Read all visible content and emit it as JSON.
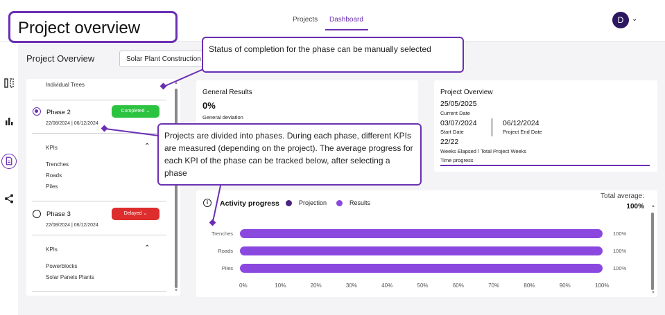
{
  "header": {
    "title": "Project overview",
    "tabs": [
      {
        "label": "Projects",
        "active": false
      },
      {
        "label": "Dashboard",
        "active": true
      }
    ],
    "avatar_initial": "D",
    "avatar_color": "#2d1761"
  },
  "rail": {
    "icons": [
      "split-view-icon",
      "bar-chart-icon",
      "document-icon",
      "share-icon"
    ],
    "active": "document-icon"
  },
  "page": {
    "heading": "Project Overview",
    "project_select_value": "Solar Plant Construction"
  },
  "phases": {
    "top_item": "Individual Trees",
    "list": [
      {
        "name": "Phase 2",
        "dates": "22/08/2024 | 06/12/2024",
        "status": "Completed",
        "status_color": "#2cc340",
        "selected": true,
        "kpi_header": "KPIs",
        "kpis": [
          "Trenches",
          "Roads",
          "Piles"
        ]
      },
      {
        "name": "Phase 3",
        "dates": "22/08/2024 | 06/12/2024",
        "status": "Delayed",
        "status_color": "#dd2d2d",
        "selected": false,
        "kpi_header": "KPIs",
        "kpis": [
          "Powerblocks",
          "Solar Panels Plants"
        ]
      }
    ]
  },
  "general_results": {
    "title": "General Results",
    "value": "0%",
    "label": "General deviation"
  },
  "project_card": {
    "title": "Project Overview",
    "current_date": "25/05/2025",
    "current_date_label": "Current Date",
    "start_date": "03/07/2024",
    "start_date_label": "Start Date",
    "end_date": "06/12/2024",
    "end_date_label": "Project End Date",
    "weeks": "22/22",
    "weeks_label": "Weeks Elapsed / Total Project Weeks",
    "time_progress_label": "Time progress",
    "time_progress": 1.0
  },
  "activity": {
    "title": "Activity progress",
    "legend": [
      {
        "name": "Projection",
        "color": "#4a2480"
      },
      {
        "name": "Results",
        "color": "#8b48df"
      }
    ],
    "total_label": "Total average:",
    "total_value": "100%"
  },
  "chart_data": {
    "type": "bar",
    "orientation": "horizontal",
    "categories": [
      "Trenches",
      "Roads",
      "Piles"
    ],
    "series": [
      {
        "name": "Results",
        "values": [
          100,
          100,
          100
        ]
      }
    ],
    "value_labels": [
      "100%",
      "100%",
      "100%"
    ],
    "xlim": [
      0,
      100
    ],
    "xticks": [
      "0%",
      "10%",
      "20%",
      "30%",
      "40%",
      "50%",
      "60%",
      "70%",
      "80%",
      "90%",
      "100%"
    ]
  },
  "callouts": {
    "status": "Status of completion for the phase can be manually selected",
    "phases": "Projects are divided into phases. During each phase, different KPIs are measured (depending on the project). The average progress for each KPI of the phase can be tracked below, after selecting a phase"
  }
}
